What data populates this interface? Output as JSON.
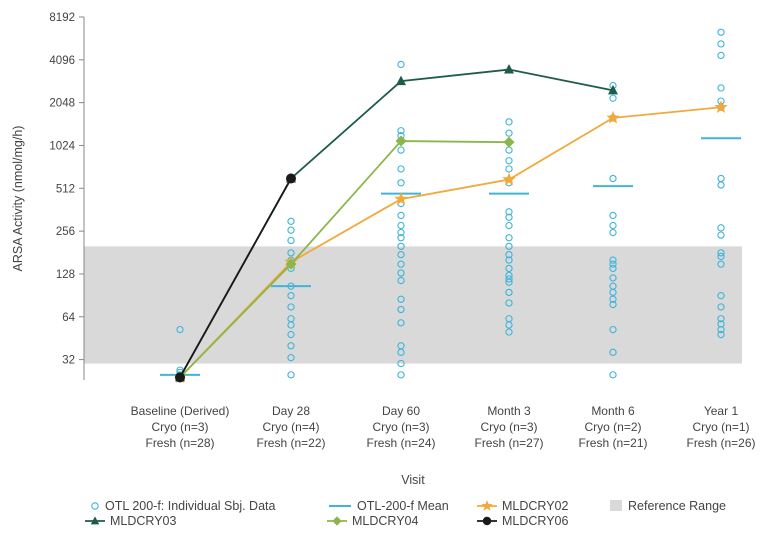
{
  "chart_data": {
    "type": "line",
    "xlabel": "Visit",
    "ylabel": "ARSA Activity (nmol/mg/h)",
    "y_scale": "log2",
    "ylim": [
      23,
      8192
    ],
    "y_ticks": [
      32,
      64,
      128,
      256,
      512,
      1024,
      2048,
      4096,
      8192
    ],
    "categories": [
      [
        "Baseline (Derived)",
        "Cryo (n=3)",
        "Fresh (n=28)"
      ],
      [
        "Day 28",
        "Cryo (n=4)",
        "Fresh (n=22)"
      ],
      [
        "Day 60",
        "Cryo (n=3)",
        "Fresh (n=24)"
      ],
      [
        "Month 3",
        "Cryo (n=3)",
        "Fresh (n=27)"
      ],
      [
        "Month 6",
        "Cryo (n=2)",
        "Fresh (n=21)"
      ],
      [
        "Year 1",
        "Cryo (n=1)",
        "Fresh (n=26)"
      ]
    ],
    "reference_range": [
      30,
      200
    ],
    "individual_data": {
      "name": "OTL 200-f: Individual Sbj. Data",
      "color": "#3fb4d9",
      "points": [
        [
          0,
          52
        ],
        [
          0,
          27
        ],
        [
          0,
          26
        ],
        [
          0,
          25
        ],
        [
          0,
          25
        ],
        [
          0,
          24
        ],
        [
          0,
          24
        ],
        [
          1,
          300
        ],
        [
          1,
          260
        ],
        [
          1,
          220
        ],
        [
          1,
          180
        ],
        [
          1,
          160
        ],
        [
          1,
          140
        ],
        [
          1,
          105
        ],
        [
          1,
          90
        ],
        [
          1,
          75
        ],
        [
          1,
          62
        ],
        [
          1,
          56
        ],
        [
          1,
          48
        ],
        [
          1,
          40
        ],
        [
          1,
          33
        ],
        [
          1,
          25
        ],
        [
          2,
          3800
        ],
        [
          2,
          1300
        ],
        [
          2,
          1200
        ],
        [
          2,
          1100
        ],
        [
          2,
          950
        ],
        [
          2,
          700
        ],
        [
          2,
          560
        ],
        [
          2,
          400
        ],
        [
          2,
          330
        ],
        [
          2,
          280
        ],
        [
          2,
          250
        ],
        [
          2,
          230
        ],
        [
          2,
          200
        ],
        [
          2,
          175
        ],
        [
          2,
          150
        ],
        [
          2,
          130
        ],
        [
          2,
          115
        ],
        [
          2,
          85
        ],
        [
          2,
          72
        ],
        [
          2,
          58
        ],
        [
          2,
          40
        ],
        [
          2,
          36
        ],
        [
          2,
          30
        ],
        [
          2,
          25
        ],
        [
          3,
          1500
        ],
        [
          3,
          1250
        ],
        [
          3,
          950
        ],
        [
          3,
          800
        ],
        [
          3,
          700
        ],
        [
          3,
          560
        ],
        [
          3,
          350
        ],
        [
          3,
          320
        ],
        [
          3,
          280
        ],
        [
          3,
          230
        ],
        [
          3,
          200
        ],
        [
          3,
          175
        ],
        [
          3,
          160
        ],
        [
          3,
          140
        ],
        [
          3,
          125
        ],
        [
          3,
          118
        ],
        [
          3,
          112
        ],
        [
          3,
          95
        ],
        [
          3,
          80
        ],
        [
          3,
          62
        ],
        [
          3,
          56
        ],
        [
          3,
          50
        ],
        [
          4,
          2700
        ],
        [
          4,
          2200
        ],
        [
          4,
          1600
        ],
        [
          4,
          600
        ],
        [
          4,
          330
        ],
        [
          4,
          280
        ],
        [
          4,
          250
        ],
        [
          4,
          160
        ],
        [
          4,
          150
        ],
        [
          4,
          140
        ],
        [
          4,
          120
        ],
        [
          4,
          105
        ],
        [
          4,
          95
        ],
        [
          4,
          85
        ],
        [
          4,
          78
        ],
        [
          4,
          52
        ],
        [
          4,
          36
        ],
        [
          4,
          25
        ],
        [
          5,
          6400
        ],
        [
          5,
          5300
        ],
        [
          5,
          4400
        ],
        [
          5,
          2600
        ],
        [
          5,
          2100
        ],
        [
          5,
          1900
        ],
        [
          5,
          600
        ],
        [
          5,
          540
        ],
        [
          5,
          270
        ],
        [
          5,
          240
        ],
        [
          5,
          180
        ],
        [
          5,
          170
        ],
        [
          5,
          150
        ],
        [
          5,
          90
        ],
        [
          5,
          75
        ],
        [
          5,
          62
        ],
        [
          5,
          57
        ],
        [
          5,
          52
        ],
        [
          5,
          48
        ]
      ]
    },
    "mean": {
      "name": "OTL-200-f Mean",
      "color": "#3fb4d9",
      "values": [
        25,
        105,
        470,
        470,
        530,
        1150
      ]
    },
    "series": [
      {
        "name": "MLDCRY02",
        "color": "#f2a93b",
        "marker": "star",
        "x": [
          0,
          1,
          2,
          3,
          4,
          5
        ],
        "values": [
          24,
          155,
          430,
          590,
          1600,
          1900
        ]
      },
      {
        "name": "MLDCRY03",
        "color": "#1f5b49",
        "marker": "triangle",
        "x": [
          0,
          1,
          2,
          3,
          4
        ],
        "values": [
          24,
          600,
          2900,
          3500,
          2500
        ]
      },
      {
        "name": "MLDCRY04",
        "color": "#8cb54a",
        "marker": "diamond",
        "x": [
          0,
          1,
          2,
          3
        ],
        "values": [
          24,
          150,
          1100,
          1080
        ]
      },
      {
        "name": "MLDCRY06",
        "color": "#1a1a1a",
        "marker": "circle",
        "x": [
          0,
          1
        ],
        "values": [
          24,
          600
        ]
      }
    ],
    "legend": {
      "position": "bottom",
      "items": [
        {
          "label": "OTL 200-f: Individual Sbj. Data",
          "kind": "open-circle",
          "color": "#3fb4d9"
        },
        {
          "label": "OTL-200-f Mean",
          "kind": "line",
          "color": "#3fb4d9"
        },
        {
          "label": "MLDCRY02",
          "kind": "star",
          "color": "#f2a93b"
        },
        {
          "label": "Reference Range",
          "kind": "box",
          "color": "#d9d9d9"
        },
        {
          "label": "MLDCRY03",
          "kind": "triangle",
          "color": "#1f5b49"
        },
        {
          "label": "MLDCRY04",
          "kind": "diamond",
          "color": "#8cb54a"
        },
        {
          "label": "MLDCRY06",
          "kind": "circle",
          "color": "#1a1a1a"
        }
      ]
    },
    "colors": {
      "reference_band": "#d9d9d9",
      "axis": "#888888"
    }
  }
}
